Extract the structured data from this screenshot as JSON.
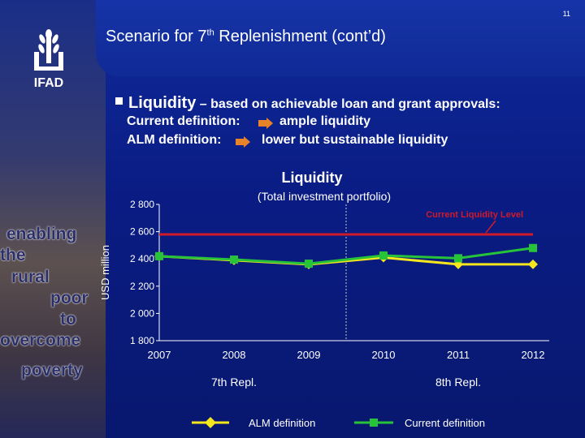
{
  "page_number": "11",
  "slide_title": {
    "main": "Scenario for 7",
    "sup": "th",
    "rest": " Replenishment (cont’d)"
  },
  "logo_text": "IFAD",
  "bullet": {
    "head": "Liquidity",
    "rest": " – based on achievable loan and grant approvals:"
  },
  "definitions": [
    {
      "label": "Current definition:",
      "value": "ample liquidity"
    },
    {
      "label": "ALM definition:",
      "value": "lower but sustainable liquidity"
    }
  ],
  "side_words": [
    "enabling",
    "the",
    "rural",
    "poor",
    "to",
    "overcome",
    "poverty"
  ],
  "colors": {
    "alm": "#f5e61e",
    "current": "#27c43a",
    "level": "#d01a2a",
    "annot": "#d01a2a"
  },
  "chart_data": {
    "type": "line",
    "title": "Liquidity",
    "subtitle": "(Total investment portfolio)",
    "ylabel": "USD million",
    "xlabel": "",
    "x": [
      "2007",
      "2008",
      "2009",
      "2010",
      "2011",
      "2012"
    ],
    "ylim": [
      1800,
      2800
    ],
    "yticks": [
      1800,
      2000,
      2200,
      2400,
      2600,
      2800
    ],
    "ytick_labels": [
      "1 800",
      "2 000",
      "2 200",
      "2 400",
      "2 600",
      "2 800"
    ],
    "series": [
      {
        "name": "ALM definition",
        "values": [
          2420,
          2390,
          2360,
          2410,
          2360,
          2360
        ],
        "marker": "diamond"
      },
      {
        "name": "Current definition",
        "values": [
          2420,
          2395,
          2365,
          2425,
          2405,
          2480
        ],
        "marker": "square"
      }
    ],
    "reference_line": {
      "label": "Current Liquidity Level",
      "value": 2580
    },
    "periods": [
      {
        "label": "7th Repl.",
        "from": "2007",
        "to": "2009"
      },
      {
        "label": "8th Repl.",
        "from": "2010",
        "to": "2012"
      }
    ],
    "legend_placement": "bottom"
  }
}
